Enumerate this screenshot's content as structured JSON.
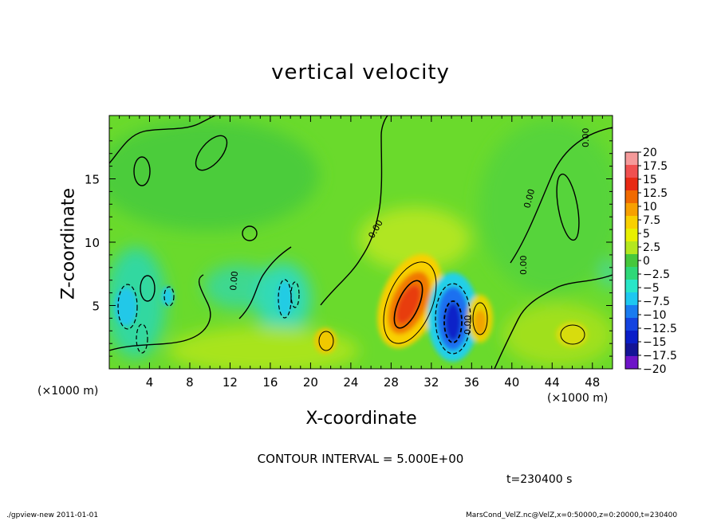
{
  "title": "vertical velocity",
  "xlabel": "X-coordinate",
  "ylabel": "Z-coordinate",
  "x_unit_left": "(×1000 m)",
  "x_unit_right": "(×1000 m)",
  "contour_interval": "CONTOUR INTERVAL = 5.000E+00",
  "timestamp": "t=230400 s",
  "footer_left": "./gpview-new   2011-01-01",
  "footer_right": "MarsCond_VelZ.nc@VelZ,x=0:50000,z=0:20000,t=230400",
  "chart_data": {
    "type": "heatmap",
    "title": "vertical velocity",
    "xlabel": "X-coordinate",
    "ylabel": "Z-coordinate",
    "xlim": [
      0,
      50
    ],
    "ylim": [
      0,
      20
    ],
    "x_ticks": [
      4,
      8,
      12,
      16,
      20,
      24,
      28,
      32,
      36,
      40,
      44,
      48
    ],
    "y_ticks": [
      5,
      10,
      15
    ],
    "contour_interval": 5.0,
    "colorbar": {
      "range": [
        -20,
        20
      ],
      "labels": [
        "20",
        "17.5",
        "15",
        "12.5",
        "10",
        "7.5",
        "5",
        "2.5",
        "0",
        "−2.5",
        "−5",
        "−7.5",
        "−10",
        "−12.5",
        "−15",
        "−17.5",
        "−20"
      ],
      "colors": [
        "#f59a9a",
        "#f05050",
        "#e82a14",
        "#f06a00",
        "#f7a000",
        "#f8d000",
        "#e8f000",
        "#b4e81e",
        "#46c83c",
        "#2ed878",
        "#28e6c8",
        "#1ec8f0",
        "#1a7cf0",
        "#1444e0",
        "#0a1ec8",
        "#141496",
        "#6e14c8"
      ]
    },
    "features": [
      {
        "label": "updraft core",
        "x": 29.5,
        "z": 5.5,
        "value": 12.5
      },
      {
        "label": "downdraft core",
        "x": 34.0,
        "z": 4.0,
        "value": -15
      },
      {
        "label": "weak updraft",
        "x": 36.8,
        "z": 3.5,
        "value": 7.5
      },
      {
        "label": "weak updraft",
        "x": 21.5,
        "z": 2.3,
        "value": 7.5
      },
      {
        "label": "weak updraft",
        "x": 45.5,
        "z": 2.5,
        "value": 5
      },
      {
        "label": "weak downdraft",
        "x": 1.5,
        "z": 4.0,
        "value": -7.5
      },
      {
        "label": "weak downdraft",
        "x": 17.5,
        "z": 5.5,
        "value": -5
      }
    ]
  }
}
